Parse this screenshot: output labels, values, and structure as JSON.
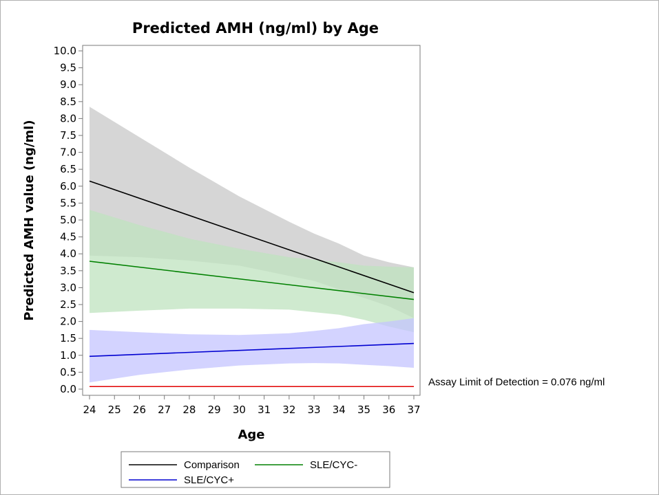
{
  "chart_data": {
    "type": "line",
    "title": "Predicted AMH (ng/ml) by Age",
    "xlabel": "Age",
    "ylabel": "Predicted AMH value (ng/ml)",
    "xlim": [
      24,
      37
    ],
    "ylim": [
      0,
      10
    ],
    "x_ticks": [
      24,
      25,
      26,
      27,
      28,
      29,
      30,
      31,
      32,
      33,
      34,
      35,
      36,
      37
    ],
    "y_ticks": [
      "0.0",
      "0.5",
      "1.0",
      "1.5",
      "2.0",
      "2.5",
      "3.0",
      "3.5",
      "4.0",
      "4.5",
      "5.0",
      "5.5",
      "6.0",
      "6.5",
      "7.0",
      "7.5",
      "8.0",
      "8.5",
      "9.0",
      "9.5",
      "10.0"
    ],
    "grid": false,
    "legend_position": "bottom",
    "series": [
      {
        "name": "Comparison",
        "color": "#000000",
        "band_color": "#c8c8c8",
        "x": [
          24,
          37
        ],
        "y": [
          6.15,
          2.85
        ],
        "band_x": [
          24,
          26,
          28,
          30,
          32,
          33,
          34,
          35,
          36,
          37
        ],
        "band_upper": [
          8.35,
          7.45,
          6.55,
          5.7,
          4.95,
          4.6,
          4.3,
          3.95,
          3.75,
          3.6
        ],
        "band_lower": [
          3.95,
          3.9,
          3.8,
          3.65,
          3.35,
          3.2,
          2.95,
          2.7,
          2.45,
          2.1
        ]
      },
      {
        "name": "SLE/CYC-",
        "color": "#008000",
        "band_color": "#bfe3bf",
        "x": [
          24,
          37
        ],
        "y": [
          3.78,
          2.65
        ],
        "band_x": [
          24,
          26,
          28,
          30,
          32,
          34,
          35,
          36,
          37
        ],
        "band_upper": [
          5.3,
          4.85,
          4.45,
          4.15,
          3.9,
          3.75,
          3.65,
          3.62,
          3.6
        ],
        "band_lower": [
          2.25,
          2.32,
          2.38,
          2.38,
          2.35,
          2.2,
          2.05,
          1.85,
          1.68
        ]
      },
      {
        "name": "SLE/CYC+",
        "color": "#0000d0",
        "band_color": "#c4c4ff",
        "x": [
          24,
          37
        ],
        "y": [
          0.97,
          1.35
        ],
        "band_x": [
          24,
          26,
          28,
          30,
          32,
          33,
          34,
          35,
          36,
          37
        ],
        "band_upper": [
          1.75,
          1.68,
          1.62,
          1.6,
          1.65,
          1.72,
          1.8,
          1.92,
          2.0,
          2.1
        ],
        "band_lower": [
          0.2,
          0.42,
          0.58,
          0.7,
          0.76,
          0.77,
          0.76,
          0.72,
          0.68,
          0.63
        ]
      }
    ],
    "reference_line": {
      "y": 0.076,
      "color": "#e00000",
      "label": "Assay Limit of Detection = 0.076 ng/ml"
    },
    "legend": {
      "entries": [
        "Comparison",
        "SLE/CYC-",
        "SLE/CYC+"
      ]
    }
  }
}
